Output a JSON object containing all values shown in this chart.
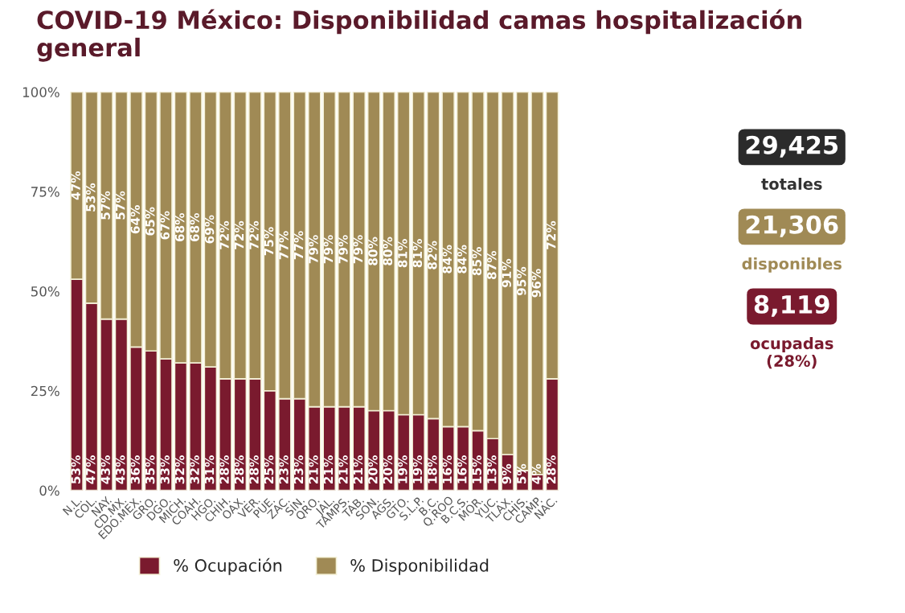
{
  "chart_data": {
    "type": "bar",
    "stacked": true,
    "title": "COVID-19 México: Disponibilidad camas hospitalización general",
    "categories": [
      "N.L.",
      "COL.",
      "NAY.",
      "CD.MX.",
      "EDO.MEX.",
      "GRO.",
      "DGO.",
      "MICH.",
      "COAH.",
      "HGO.",
      "CHIH.",
      "OAX.",
      "VER.",
      "PUE.",
      "ZAC.",
      "SIN.",
      "QRO.",
      "JAL.",
      "TAMPS.",
      "TAB.",
      "SON.",
      "AGS.",
      "GTO.",
      "S.L.P.",
      "B.C.",
      "Q.ROO",
      "B.C.S.",
      "MOR.",
      "YUC.",
      "TLAX.",
      "CHIS.",
      "CAMP.",
      "NAC."
    ],
    "series": [
      {
        "name": "% Ocupación",
        "color": "#7a1a2e",
        "values": [
          53,
          47,
          43,
          43,
          36,
          35,
          33,
          32,
          32,
          31,
          28,
          28,
          28,
          25,
          23,
          23,
          21,
          21,
          21,
          21,
          20,
          20,
          19,
          19,
          18,
          16,
          16,
          15,
          13,
          9,
          5,
          4,
          28
        ],
        "value_labels": [
          "53%",
          "47%",
          "43%",
          "43%",
          "36%",
          "35%",
          "33%",
          "32%",
          "32%",
          "31%",
          "28%",
          "28%",
          "28%",
          "25%",
          "23%",
          "23%",
          "21%",
          "21%",
          "21%",
          "21%",
          "20%",
          "20%",
          "19%",
          "19%",
          "18%",
          "16%",
          "16%",
          "15%",
          "13%",
          "9%",
          "5%",
          "4%",
          "28%"
        ]
      },
      {
        "name": "% Disponibilidad",
        "color": "#a08a55",
        "values": [
          47,
          53,
          57,
          57,
          64,
          65,
          67,
          68,
          68,
          69,
          72,
          72,
          72,
          75,
          77,
          77,
          79,
          79,
          79,
          79,
          80,
          80,
          81,
          81,
          82,
          84,
          84,
          85,
          87,
          91,
          95,
          96,
          72
        ],
        "value_labels": [
          "47%",
          "53%",
          "57%",
          "57%",
          "64%",
          "65%",
          "67%",
          "68%",
          "68%",
          "69%",
          "72%",
          "72%",
          "72%",
          "75%",
          "77%",
          "77%",
          "79%",
          "79%",
          "79%",
          "79%",
          "80%",
          "80%",
          "81%",
          "81%",
          "82%",
          "84%",
          "84%",
          "85%",
          "87%",
          "91%",
          "95%",
          "96%",
          "72%"
        ]
      }
    ],
    "ylim": [
      0,
      100
    ],
    "yticks": [
      {
        "value": 0,
        "label": "0%"
      },
      {
        "value": 25,
        "label": "25%"
      },
      {
        "value": 50,
        "label": "50%"
      },
      {
        "value": 75,
        "label": "75%"
      },
      {
        "value": 100,
        "label": "100%"
      }
    ],
    "grid": false,
    "legend": "bottom",
    "annotations": [
      "29,425",
      "totales",
      "21,306",
      "disponibles",
      "8,119",
      "ocupadas\n(28%)"
    ]
  }
}
